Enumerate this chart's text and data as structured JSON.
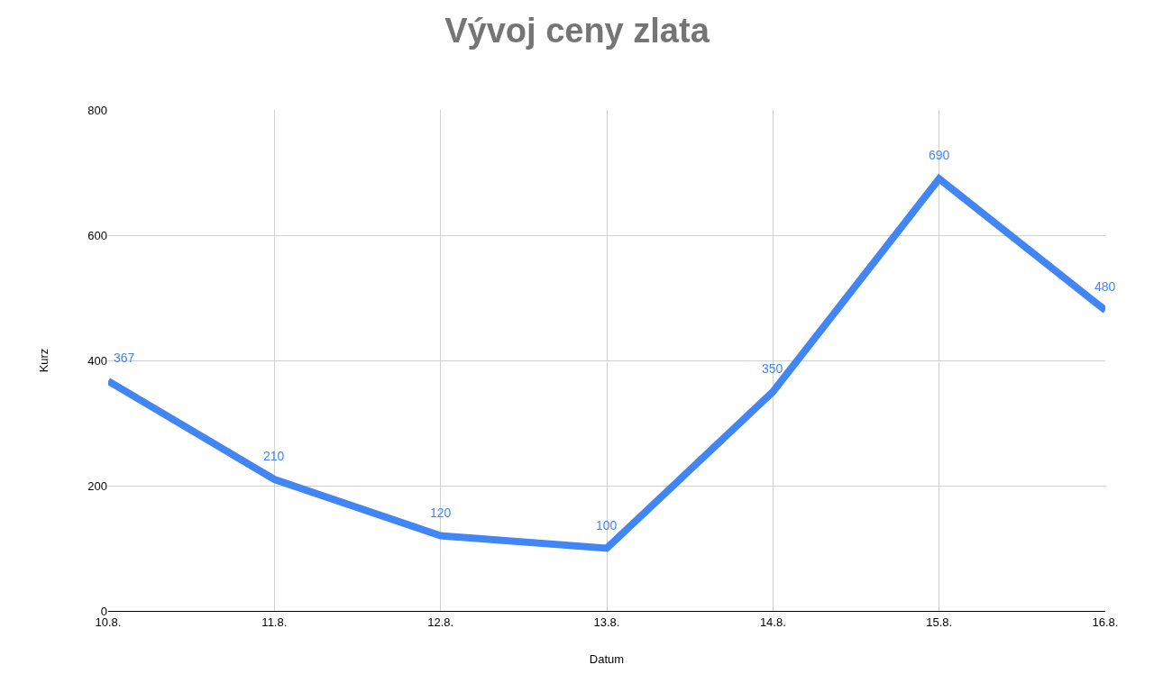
{
  "chart_data": {
    "type": "line",
    "title": "Vývoj ceny zlata",
    "xlabel": "Datum",
    "ylabel": "Kurz",
    "categories": [
      "10.8.",
      "11.8.",
      "12.8.",
      "13.8.",
      "14.8.",
      "15.8.",
      "16.8."
    ],
    "series": [
      {
        "color": "#4285f4",
        "values": [
          367,
          210,
          120,
          100,
          350,
          690,
          480
        ]
      }
    ],
    "ylim": [
      0,
      800
    ],
    "yticks": [
      0,
      200,
      400,
      600,
      800
    ],
    "grid": true,
    "marker": "none",
    "line_style": "solid",
    "data_labels": true
  }
}
